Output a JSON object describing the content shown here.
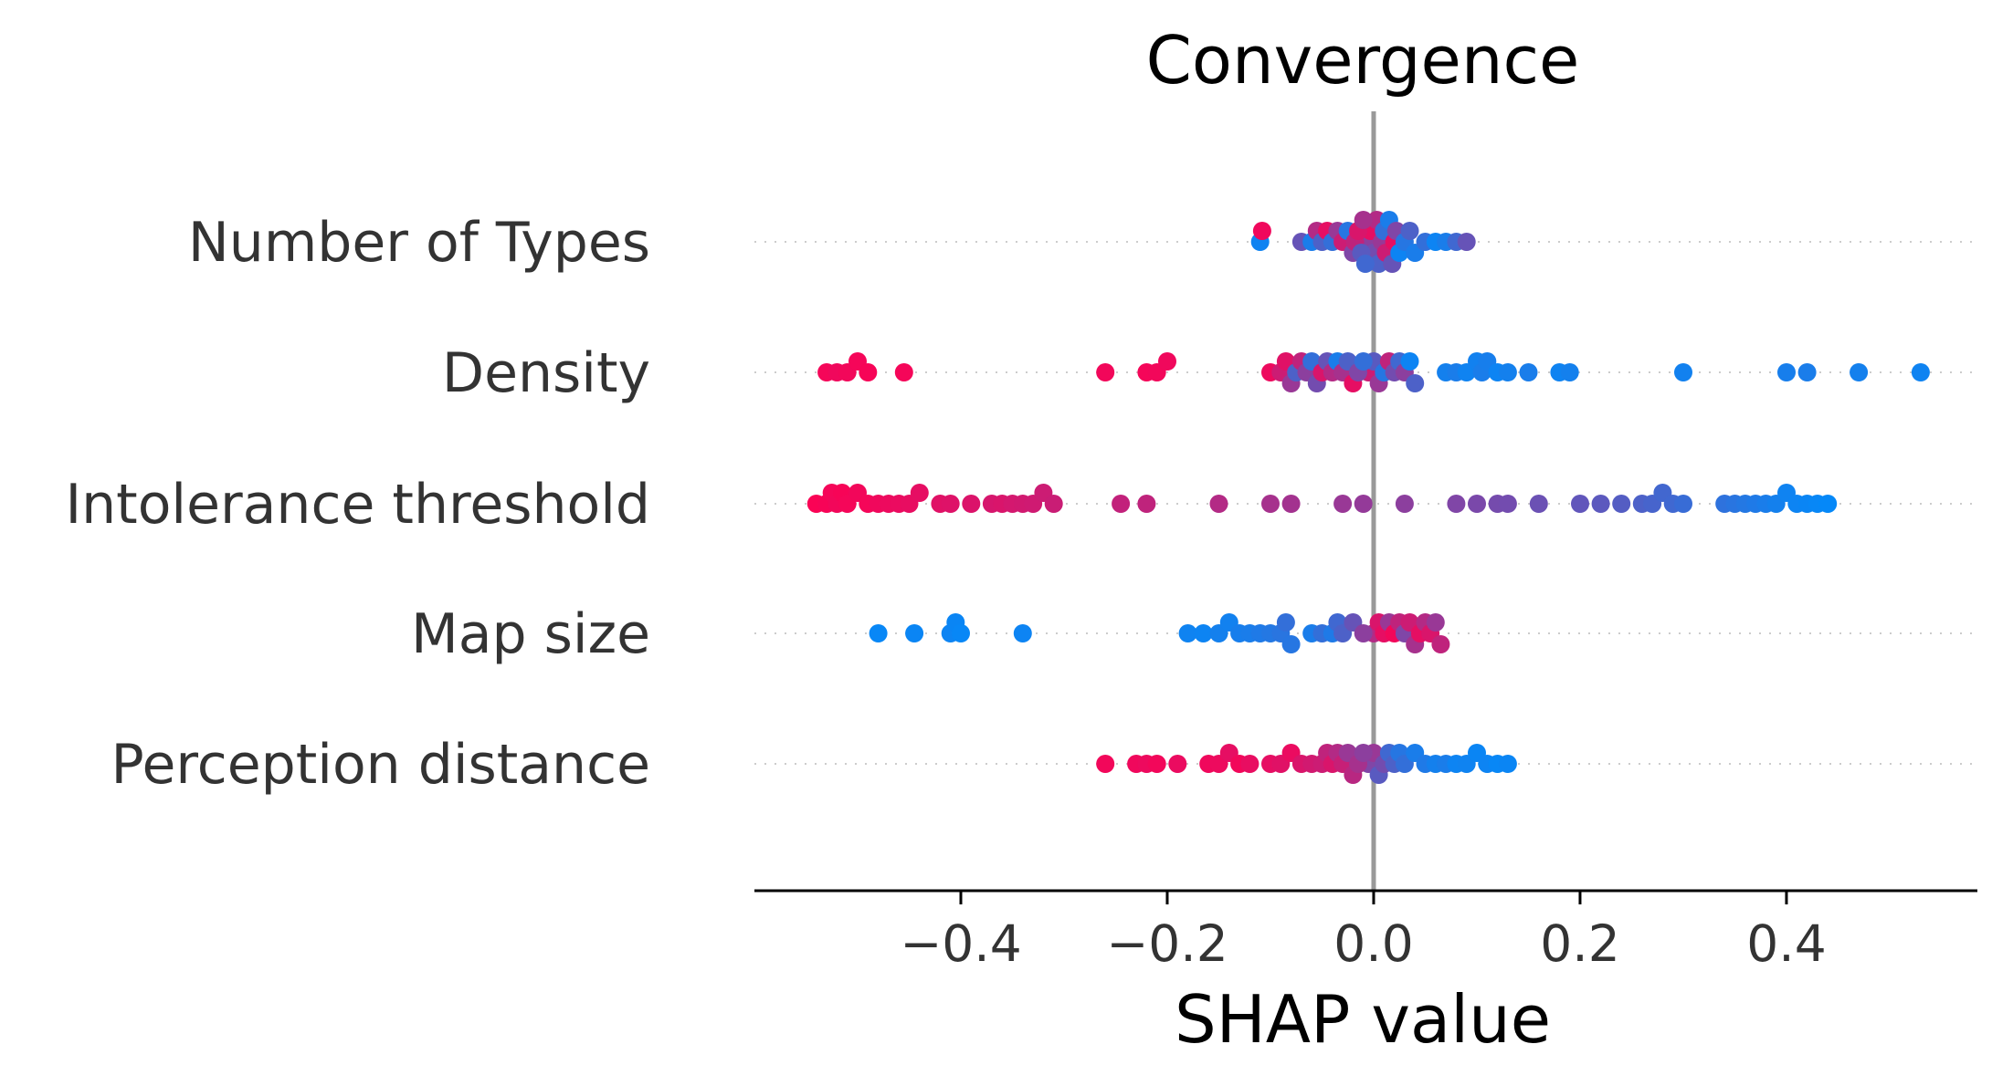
{
  "chart_data": {
    "type": "scatter",
    "subtype": "shap-beeswarm",
    "title": "Convergence",
    "xlabel": "SHAP value",
    "xlim": [
      -0.6,
      0.585
    ],
    "xticks": [
      -0.4,
      -0.2,
      0.0,
      0.2,
      0.4
    ],
    "xtick_labels": [
      "−0.4",
      "−0.2",
      "0.0",
      "0.2",
      "0.4"
    ],
    "zero_line": 0.0,
    "grid": "dotted row guides",
    "colors": {
      "low": "#008bfb",
      "high": "#ff0052",
      "zero_line": "#999999"
    },
    "features": [
      {
        "name": "Number of Types",
        "points": [
          [
            -0.11,
            0.06
          ],
          [
            -0.108,
            0.94
          ],
          [
            -0.07,
            0.4
          ],
          [
            -0.06,
            0.1
          ],
          [
            -0.055,
            0.7
          ],
          [
            -0.05,
            0.3
          ],
          [
            -0.045,
            0.9
          ],
          [
            -0.04,
            0.2
          ],
          [
            -0.035,
            0.6
          ],
          [
            -0.03,
            0.8
          ],
          [
            -0.025,
            0.15
          ],
          [
            -0.02,
            0.5
          ],
          [
            -0.018,
            0.75
          ],
          [
            -0.015,
            0.85
          ],
          [
            -0.012,
            0.35
          ],
          [
            -0.01,
            0.65
          ],
          [
            -0.008,
            0.25
          ],
          [
            -0.005,
            0.55
          ],
          [
            -0.003,
            0.9
          ],
          [
            0.0,
            0.45
          ],
          [
            0.003,
            0.7
          ],
          [
            0.005,
            0.3
          ],
          [
            0.008,
            0.6
          ],
          [
            0.01,
            0.2
          ],
          [
            0.012,
            0.8
          ],
          [
            0.015,
            0.1
          ],
          [
            0.018,
            0.4
          ],
          [
            0.02,
            0.9
          ],
          [
            0.022,
            0.5
          ],
          [
            0.025,
            0.05
          ],
          [
            0.03,
            0.15
          ],
          [
            0.035,
            0.3
          ],
          [
            0.04,
            0.1
          ],
          [
            0.05,
            0.2
          ],
          [
            0.06,
            0.05
          ],
          [
            0.07,
            0.1
          ],
          [
            0.08,
            0.25
          ],
          [
            0.09,
            0.4
          ]
        ]
      },
      {
        "name": "Density",
        "points": [
          [
            -0.53,
            0.96
          ],
          [
            -0.52,
            0.94
          ],
          [
            -0.51,
            0.95
          ],
          [
            -0.5,
            0.96
          ],
          [
            -0.49,
            0.97
          ],
          [
            -0.455,
            0.96
          ],
          [
            -0.26,
            0.95
          ],
          [
            -0.22,
            0.96
          ],
          [
            -0.21,
            0.95
          ],
          [
            -0.2,
            0.94
          ],
          [
            -0.1,
            0.93
          ],
          [
            -0.09,
            0.8
          ],
          [
            -0.085,
            0.88
          ],
          [
            -0.08,
            0.6
          ],
          [
            -0.075,
            0.3
          ],
          [
            -0.07,
            0.75
          ],
          [
            -0.065,
            0.55
          ],
          [
            -0.06,
            0.2
          ],
          [
            -0.055,
            0.45
          ],
          [
            -0.05,
            0.85
          ],
          [
            -0.045,
            0.4
          ],
          [
            -0.04,
            0.7
          ],
          [
            -0.035,
            0.1
          ],
          [
            -0.03,
            0.65
          ],
          [
            -0.025,
            0.3
          ],
          [
            -0.02,
            0.9
          ],
          [
            -0.015,
            0.5
          ],
          [
            -0.01,
            0.2
          ],
          [
            -0.005,
            0.8
          ],
          [
            0.0,
            0.35
          ],
          [
            0.005,
            0.6
          ],
          [
            0.01,
            0.15
          ],
          [
            0.015,
            0.75
          ],
          [
            0.02,
            0.45
          ],
          [
            0.025,
            0.25
          ],
          [
            0.03,
            0.55
          ],
          [
            0.035,
            0.05
          ],
          [
            0.04,
            0.3
          ],
          [
            0.07,
            0.08
          ],
          [
            0.08,
            0.1
          ],
          [
            0.09,
            0.06
          ],
          [
            0.1,
            0.07
          ],
          [
            0.105,
            0.1
          ],
          [
            0.11,
            0.09
          ],
          [
            0.12,
            0.05
          ],
          [
            0.13,
            0.08
          ],
          [
            0.15,
            0.1
          ],
          [
            0.18,
            0.06
          ],
          [
            0.19,
            0.08
          ],
          [
            0.3,
            0.07
          ],
          [
            0.4,
            0.09
          ],
          [
            0.42,
            0.1
          ],
          [
            0.47,
            0.08
          ],
          [
            0.53,
            0.06
          ]
        ]
      },
      {
        "name": "Intolerance threshold",
        "points": [
          [
            -0.54,
            0.98
          ],
          [
            -0.53,
            0.97
          ],
          [
            -0.525,
            0.96
          ],
          [
            -0.52,
            0.95
          ],
          [
            -0.515,
            0.97
          ],
          [
            -0.51,
            0.96
          ],
          [
            -0.5,
            0.95
          ],
          [
            -0.49,
            0.96
          ],
          [
            -0.48,
            0.94
          ],
          [
            -0.47,
            0.93
          ],
          [
            -0.46,
            0.92
          ],
          [
            -0.45,
            0.91
          ],
          [
            -0.44,
            0.9
          ],
          [
            -0.42,
            0.88
          ],
          [
            -0.41,
            0.87
          ],
          [
            -0.39,
            0.86
          ],
          [
            -0.37,
            0.84
          ],
          [
            -0.36,
            0.85
          ],
          [
            -0.35,
            0.83
          ],
          [
            -0.34,
            0.82
          ],
          [
            -0.33,
            0.81
          ],
          [
            -0.32,
            0.8
          ],
          [
            -0.31,
            0.79
          ],
          [
            -0.245,
            0.76
          ],
          [
            -0.22,
            0.75
          ],
          [
            -0.15,
            0.7
          ],
          [
            -0.1,
            0.65
          ],
          [
            -0.08,
            0.64
          ],
          [
            -0.03,
            0.6
          ],
          [
            -0.01,
            0.58
          ],
          [
            0.03,
            0.55
          ],
          [
            0.08,
            0.5
          ],
          [
            0.1,
            0.48
          ],
          [
            0.12,
            0.46
          ],
          [
            0.13,
            0.45
          ],
          [
            0.16,
            0.42
          ],
          [
            0.2,
            0.38
          ],
          [
            0.22,
            0.36
          ],
          [
            0.24,
            0.33
          ],
          [
            0.26,
            0.3
          ],
          [
            0.27,
            0.28
          ],
          [
            0.28,
            0.26
          ],
          [
            0.29,
            0.25
          ],
          [
            0.3,
            0.22
          ],
          [
            0.34,
            0.18
          ],
          [
            0.35,
            0.16
          ],
          [
            0.36,
            0.14
          ],
          [
            0.37,
            0.12
          ],
          [
            0.38,
            0.1
          ],
          [
            0.39,
            0.08
          ],
          [
            0.4,
            0.06
          ],
          [
            0.41,
            0.05
          ],
          [
            0.42,
            0.04
          ],
          [
            0.43,
            0.03
          ],
          [
            0.44,
            0.02
          ]
        ]
      },
      {
        "name": "Map size",
        "points": [
          [
            -0.48,
            0.03
          ],
          [
            -0.445,
            0.04
          ],
          [
            -0.41,
            0.05
          ],
          [
            -0.405,
            0.04
          ],
          [
            -0.4,
            0.03
          ],
          [
            -0.34,
            0.05
          ],
          [
            -0.18,
            0.06
          ],
          [
            -0.165,
            0.05
          ],
          [
            -0.15,
            0.08
          ],
          [
            -0.14,
            0.07
          ],
          [
            -0.13,
            0.09
          ],
          [
            -0.12,
            0.1
          ],
          [
            -0.11,
            0.12
          ],
          [
            -0.1,
            0.14
          ],
          [
            -0.09,
            0.16
          ],
          [
            -0.085,
            0.2
          ],
          [
            -0.08,
            0.15
          ],
          [
            -0.06,
            0.1
          ],
          [
            -0.05,
            0.2
          ],
          [
            -0.04,
            0.12
          ],
          [
            -0.035,
            0.25
          ],
          [
            -0.03,
            0.3
          ],
          [
            -0.02,
            0.4
          ],
          [
            -0.01,
            0.55
          ],
          [
            0.0,
            0.7
          ],
          [
            0.005,
            0.85
          ],
          [
            0.01,
            0.9
          ],
          [
            0.015,
            0.6
          ],
          [
            0.02,
            0.95
          ],
          [
            0.025,
            0.75
          ],
          [
            0.03,
            0.5
          ],
          [
            0.035,
            0.8
          ],
          [
            0.04,
            0.65
          ],
          [
            0.045,
            0.9
          ],
          [
            0.05,
            0.7
          ],
          [
            0.055,
            0.85
          ],
          [
            0.06,
            0.6
          ],
          [
            0.065,
            0.75
          ]
        ]
      },
      {
        "name": "Perception distance",
        "points": [
          [
            -0.26,
            0.95
          ],
          [
            -0.23,
            0.94
          ],
          [
            -0.22,
            0.93
          ],
          [
            -0.21,
            0.95
          ],
          [
            -0.19,
            0.92
          ],
          [
            -0.16,
            0.94
          ],
          [
            -0.15,
            0.93
          ],
          [
            -0.14,
            0.9
          ],
          [
            -0.13,
            0.95
          ],
          [
            -0.12,
            0.91
          ],
          [
            -0.1,
            0.9
          ],
          [
            -0.09,
            0.88
          ],
          [
            -0.08,
            0.92
          ],
          [
            -0.07,
            0.85
          ],
          [
            -0.06,
            0.82
          ],
          [
            -0.05,
            0.8
          ],
          [
            -0.045,
            0.75
          ],
          [
            -0.04,
            0.85
          ],
          [
            -0.035,
            0.7
          ],
          [
            -0.03,
            0.78
          ],
          [
            -0.025,
            0.6
          ],
          [
            -0.02,
            0.72
          ],
          [
            -0.015,
            0.65
          ],
          [
            -0.01,
            0.55
          ],
          [
            -0.005,
            0.5
          ],
          [
            0.0,
            0.6
          ],
          [
            0.005,
            0.35
          ],
          [
            0.01,
            0.45
          ],
          [
            0.015,
            0.25
          ],
          [
            0.02,
            0.3
          ],
          [
            0.025,
            0.15
          ],
          [
            0.03,
            0.2
          ],
          [
            0.04,
            0.1
          ],
          [
            0.05,
            0.12
          ],
          [
            0.06,
            0.08
          ],
          [
            0.07,
            0.1
          ],
          [
            0.08,
            0.05
          ],
          [
            0.09,
            0.06
          ],
          [
            0.1,
            0.04
          ],
          [
            0.11,
            0.05
          ],
          [
            0.12,
            0.03
          ],
          [
            0.13,
            0.04
          ]
        ]
      }
    ]
  }
}
